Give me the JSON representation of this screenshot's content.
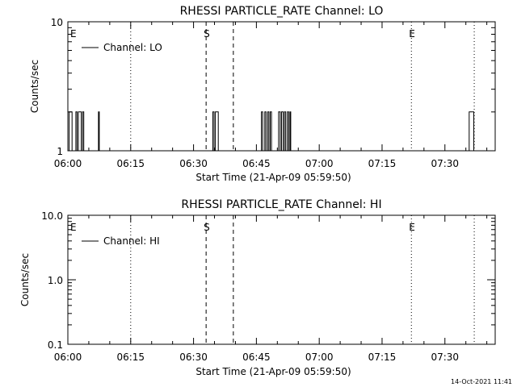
{
  "footer_timestamp": "14-Oct-2021 11:41",
  "chart_data": [
    {
      "type": "line",
      "title": "RHESSI PARTICLE_RATE Channel: LO",
      "xlabel": "Start Time (21-Apr-09 05:59:50)",
      "ylabel": "Counts/sec",
      "ylog": true,
      "ylim": [
        1,
        10
      ],
      "xlim_minutes": [
        0,
        102
      ],
      "x_tick_minutes": [
        0,
        15,
        30,
        45,
        60,
        75,
        90
      ],
      "x_tick_labels": [
        "06:00",
        "06:15",
        "06:30",
        "06:45",
        "07:00",
        "07:15",
        "07:30"
      ],
      "y_tick_values": [
        1,
        10
      ],
      "y_tick_labels": [
        "1",
        "10"
      ],
      "legend": {
        "position": "top-left",
        "entries": [
          {
            "label": "Channel: LO"
          }
        ]
      },
      "series": [
        {
          "name": "Channel: LO",
          "points_minutes": [
            [
              0,
              1
            ],
            [
              0.3,
              2
            ],
            [
              0.7,
              2
            ],
            [
              1.0,
              1
            ],
            [
              1.7,
              1
            ],
            [
              1.9,
              2
            ],
            [
              2.2,
              1
            ],
            [
              2.5,
              2
            ],
            [
              3.0,
              2
            ],
            [
              3.2,
              1
            ],
            [
              3.5,
              2
            ],
            [
              3.8,
              1
            ],
            [
              7.0,
              1
            ],
            [
              7.3,
              2
            ],
            [
              7.5,
              1
            ],
            [
              34.3,
              1
            ],
            [
              34.6,
              2
            ],
            [
              34.9,
              1
            ],
            [
              35.2,
              2
            ],
            [
              35.6,
              2
            ],
            [
              35.9,
              1
            ],
            [
              45.9,
              1
            ],
            [
              46.2,
              2
            ],
            [
              46.5,
              1
            ],
            [
              47.0,
              2
            ],
            [
              47.3,
              1
            ],
            [
              47.7,
              2
            ],
            [
              48.0,
              1
            ],
            [
              48.3,
              2
            ],
            [
              48.6,
              1
            ],
            [
              50.0,
              1
            ],
            [
              50.3,
              2
            ],
            [
              50.7,
              1
            ],
            [
              51.0,
              2
            ],
            [
              51.4,
              1
            ],
            [
              51.7,
              2
            ],
            [
              52.0,
              1
            ],
            [
              52.4,
              2
            ],
            [
              52.7,
              1
            ],
            [
              53.0,
              2
            ],
            [
              53.2,
              1
            ],
            [
              95.5,
              1
            ],
            [
              95.8,
              2
            ],
            [
              96.6,
              2
            ],
            [
              96.9,
              1
            ],
            [
              97.5,
              1
            ]
          ]
        }
      ],
      "annotations": [
        {
          "label": "E",
          "minute": 0
        },
        {
          "label": "S",
          "minute": 33
        },
        {
          "label": "E",
          "minute": 82
        }
      ],
      "vlines": [
        {
          "minute": 15,
          "style": "dotted"
        },
        {
          "minute": 33,
          "style": "dashed"
        },
        {
          "minute": 39.5,
          "style": "dashed"
        },
        {
          "minute": 82,
          "style": "dotted"
        },
        {
          "minute": 97,
          "style": "dotted"
        }
      ]
    },
    {
      "type": "line",
      "title": "RHESSI PARTICLE_RATE Channel: HI",
      "xlabel": "Start Time (21-Apr-09 05:59:50)",
      "ylabel": "Counts/sec",
      "ylog": true,
      "ylim": [
        0.1,
        10
      ],
      "xlim_minutes": [
        0,
        102
      ],
      "x_tick_minutes": [
        0,
        15,
        30,
        45,
        60,
        75,
        90
      ],
      "x_tick_labels": [
        "06:00",
        "06:15",
        "06:30",
        "06:45",
        "07:00",
        "07:15",
        "07:30"
      ],
      "y_tick_values": [
        0.1,
        1,
        10
      ],
      "y_tick_labels": [
        "0.1",
        "1.0",
        "10.0"
      ],
      "legend": {
        "position": "top-left",
        "entries": [
          {
            "label": "Channel: HI"
          }
        ]
      },
      "series": [
        {
          "name": "Channel: HI",
          "points_minutes": []
        }
      ],
      "annotations": [
        {
          "label": "E",
          "minute": 0
        },
        {
          "label": "S",
          "minute": 33
        },
        {
          "label": "E",
          "minute": 82
        }
      ],
      "vlines": [
        {
          "minute": 15,
          "style": "dotted"
        },
        {
          "minute": 33,
          "style": "dashed"
        },
        {
          "minute": 39.5,
          "style": "dashed"
        },
        {
          "minute": 82,
          "style": "dotted"
        },
        {
          "minute": 97,
          "style": "dotted"
        }
      ]
    }
  ]
}
